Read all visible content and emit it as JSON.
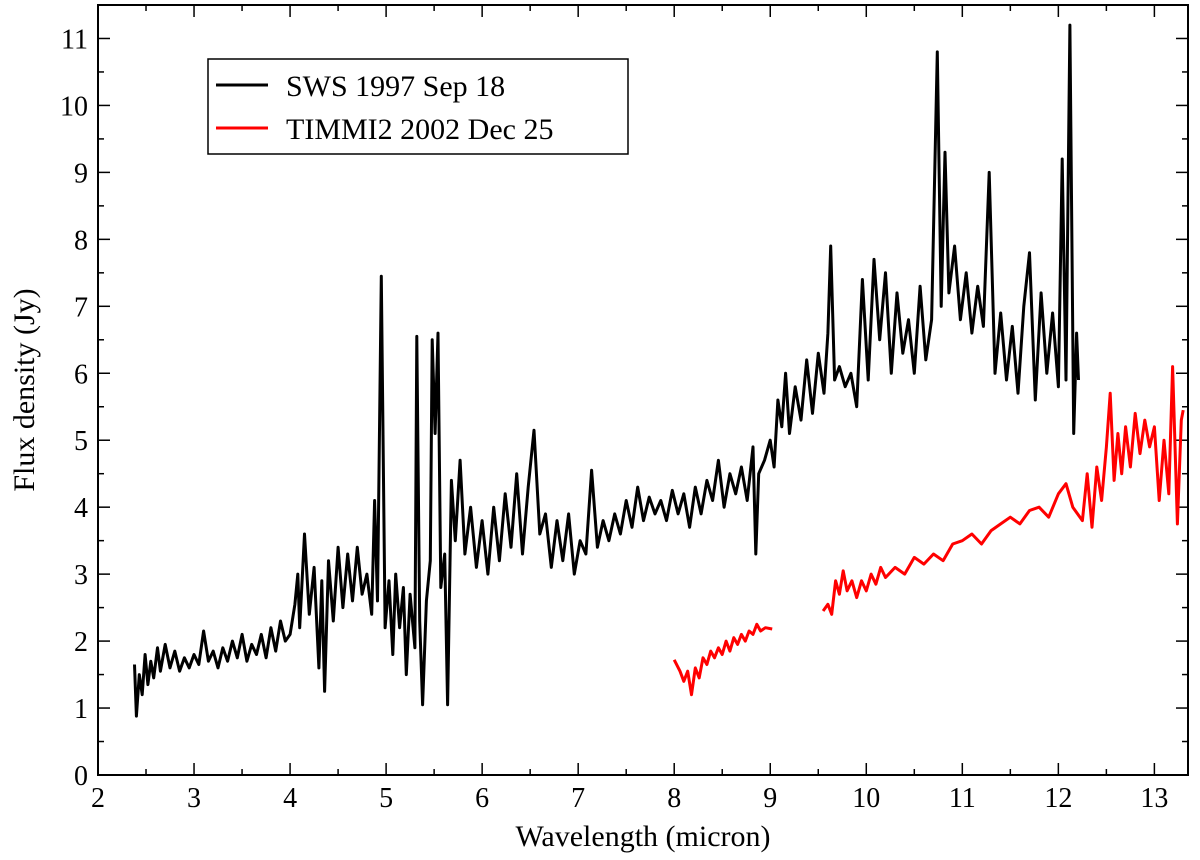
{
  "chart_data": {
    "type": "line",
    "title": "",
    "xlabel": "Wavelength (micron)",
    "ylabel": "Flux density (Jy)",
    "xlim": [
      2,
      13.35
    ],
    "ylim": [
      0,
      11.5
    ],
    "xticks": [
      2,
      3,
      4,
      5,
      6,
      7,
      8,
      9,
      10,
      11,
      12,
      13
    ],
    "yticks": [
      0,
      1,
      2,
      3,
      4,
      5,
      6,
      7,
      8,
      9,
      10,
      11
    ],
    "grid": false,
    "legend_position": "top-left",
    "series": [
      {
        "name": "SWS 1997 Sep 18",
        "color": "#000000",
        "points": [
          [
            2.38,
            1.65
          ],
          [
            2.4,
            0.88
          ],
          [
            2.43,
            1.5
          ],
          [
            2.46,
            1.2
          ],
          [
            2.49,
            1.8
          ],
          [
            2.52,
            1.35
          ],
          [
            2.55,
            1.7
          ],
          [
            2.58,
            1.45
          ],
          [
            2.62,
            1.9
          ],
          [
            2.65,
            1.55
          ],
          [
            2.7,
            1.95
          ],
          [
            2.75,
            1.6
          ],
          [
            2.8,
            1.85
          ],
          [
            2.85,
            1.55
          ],
          [
            2.9,
            1.75
          ],
          [
            2.95,
            1.6
          ],
          [
            3.0,
            1.8
          ],
          [
            3.05,
            1.65
          ],
          [
            3.1,
            2.15
          ],
          [
            3.15,
            1.7
          ],
          [
            3.2,
            1.85
          ],
          [
            3.25,
            1.6
          ],
          [
            3.3,
            1.9
          ],
          [
            3.35,
            1.7
          ],
          [
            3.4,
            2.0
          ],
          [
            3.45,
            1.75
          ],
          [
            3.5,
            2.1
          ],
          [
            3.55,
            1.7
          ],
          [
            3.6,
            1.95
          ],
          [
            3.65,
            1.8
          ],
          [
            3.7,
            2.1
          ],
          [
            3.75,
            1.75
          ],
          [
            3.8,
            2.2
          ],
          [
            3.85,
            1.85
          ],
          [
            3.9,
            2.3
          ],
          [
            3.95,
            2.0
          ],
          [
            4.0,
            2.1
          ],
          [
            4.05,
            2.55
          ],
          [
            4.08,
            3.0
          ],
          [
            4.1,
            2.2
          ],
          [
            4.15,
            3.6
          ],
          [
            4.2,
            2.4
          ],
          [
            4.25,
            3.1
          ],
          [
            4.3,
            1.6
          ],
          [
            4.33,
            2.9
          ],
          [
            4.36,
            1.25
          ],
          [
            4.4,
            3.2
          ],
          [
            4.45,
            2.3
          ],
          [
            4.5,
            3.4
          ],
          [
            4.55,
            2.5
          ],
          [
            4.6,
            3.3
          ],
          [
            4.65,
            2.6
          ],
          [
            4.7,
            3.4
          ],
          [
            4.75,
            2.7
          ],
          [
            4.8,
            3.0
          ],
          [
            4.85,
            2.4
          ],
          [
            4.88,
            4.1
          ],
          [
            4.91,
            2.6
          ],
          [
            4.95,
            7.45
          ],
          [
            4.99,
            2.2
          ],
          [
            5.03,
            2.9
          ],
          [
            5.07,
            1.8
          ],
          [
            5.1,
            3.0
          ],
          [
            5.14,
            2.2
          ],
          [
            5.18,
            2.8
          ],
          [
            5.21,
            1.5
          ],
          [
            5.25,
            2.7
          ],
          [
            5.3,
            1.9
          ],
          [
            5.32,
            6.55
          ],
          [
            5.35,
            2.3
          ],
          [
            5.38,
            1.05
          ],
          [
            5.42,
            2.6
          ],
          [
            5.46,
            3.2
          ],
          [
            5.48,
            6.5
          ],
          [
            5.51,
            5.1
          ],
          [
            5.54,
            6.6
          ],
          [
            5.57,
            2.8
          ],
          [
            5.61,
            3.3
          ],
          [
            5.64,
            1.05
          ],
          [
            5.68,
            4.4
          ],
          [
            5.72,
            3.5
          ],
          [
            5.77,
            4.7
          ],
          [
            5.82,
            3.3
          ],
          [
            5.88,
            4.0
          ],
          [
            5.94,
            3.1
          ],
          [
            6.0,
            3.8
          ],
          [
            6.06,
            3.0
          ],
          [
            6.12,
            4.0
          ],
          [
            6.18,
            3.2
          ],
          [
            6.24,
            4.2
          ],
          [
            6.3,
            3.4
          ],
          [
            6.36,
            4.5
          ],
          [
            6.42,
            3.3
          ],
          [
            6.48,
            4.3
          ],
          [
            6.54,
            5.15
          ],
          [
            6.6,
            3.6
          ],
          [
            6.66,
            3.9
          ],
          [
            6.72,
            3.1
          ],
          [
            6.78,
            3.8
          ],
          [
            6.84,
            3.2
          ],
          [
            6.9,
            3.9
          ],
          [
            6.96,
            3.0
          ],
          [
            7.02,
            3.5
          ],
          [
            7.08,
            3.3
          ],
          [
            7.14,
            4.55
          ],
          [
            7.2,
            3.4
          ],
          [
            7.26,
            3.8
          ],
          [
            7.32,
            3.5
          ],
          [
            7.38,
            3.9
          ],
          [
            7.44,
            3.6
          ],
          [
            7.5,
            4.1
          ],
          [
            7.56,
            3.7
          ],
          [
            7.62,
            4.3
          ],
          [
            7.68,
            3.8
          ],
          [
            7.74,
            4.15
          ],
          [
            7.8,
            3.9
          ],
          [
            7.86,
            4.1
          ],
          [
            7.92,
            3.8
          ],
          [
            7.98,
            4.25
          ],
          [
            8.04,
            3.9
          ],
          [
            8.1,
            4.2
          ],
          [
            8.16,
            3.7
          ],
          [
            8.22,
            4.3
          ],
          [
            8.28,
            3.9
          ],
          [
            8.34,
            4.4
          ],
          [
            8.4,
            4.1
          ],
          [
            8.46,
            4.7
          ],
          [
            8.52,
            4.0
          ],
          [
            8.58,
            4.5
          ],
          [
            8.64,
            4.2
          ],
          [
            8.7,
            4.6
          ],
          [
            8.76,
            4.1
          ],
          [
            8.82,
            4.9
          ],
          [
            8.85,
            3.3
          ],
          [
            8.88,
            4.5
          ],
          [
            8.94,
            4.7
          ],
          [
            9.0,
            5.0
          ],
          [
            9.04,
            4.6
          ],
          [
            9.08,
            5.6
          ],
          [
            9.12,
            5.2
          ],
          [
            9.16,
            6.0
          ],
          [
            9.2,
            5.1
          ],
          [
            9.26,
            5.8
          ],
          [
            9.32,
            5.3
          ],
          [
            9.38,
            6.2
          ],
          [
            9.44,
            5.4
          ],
          [
            9.5,
            6.3
          ],
          [
            9.56,
            5.7
          ],
          [
            9.6,
            6.6
          ],
          [
            9.63,
            7.9
          ],
          [
            9.67,
            5.9
          ],
          [
            9.72,
            6.1
          ],
          [
            9.78,
            5.8
          ],
          [
            9.84,
            6.0
          ],
          [
            9.9,
            5.5
          ],
          [
            9.96,
            7.4
          ],
          [
            10.02,
            5.9
          ],
          [
            10.08,
            7.7
          ],
          [
            10.14,
            6.5
          ],
          [
            10.2,
            7.5
          ],
          [
            10.26,
            6.0
          ],
          [
            10.32,
            7.2
          ],
          [
            10.38,
            6.3
          ],
          [
            10.44,
            6.8
          ],
          [
            10.5,
            6.0
          ],
          [
            10.56,
            7.3
          ],
          [
            10.62,
            6.2
          ],
          [
            10.68,
            6.8
          ],
          [
            10.74,
            10.8
          ],
          [
            10.78,
            7.0
          ],
          [
            10.82,
            9.3
          ],
          [
            10.86,
            7.2
          ],
          [
            10.92,
            7.9
          ],
          [
            10.98,
            6.8
          ],
          [
            11.04,
            7.5
          ],
          [
            11.1,
            6.6
          ],
          [
            11.16,
            7.3
          ],
          [
            11.22,
            6.7
          ],
          [
            11.28,
            9.0
          ],
          [
            11.34,
            6.0
          ],
          [
            11.4,
            6.9
          ],
          [
            11.46,
            5.9
          ],
          [
            11.52,
            6.7
          ],
          [
            11.58,
            5.7
          ],
          [
            11.64,
            7.0
          ],
          [
            11.7,
            7.8
          ],
          [
            11.76,
            5.6
          ],
          [
            11.82,
            7.2
          ],
          [
            11.88,
            6.0
          ],
          [
            11.94,
            6.9
          ],
          [
            12.0,
            5.8
          ],
          [
            12.04,
            9.2
          ],
          [
            12.08,
            5.9
          ],
          [
            12.12,
            11.2
          ],
          [
            12.16,
            5.1
          ],
          [
            12.19,
            6.6
          ],
          [
            12.21,
            5.9
          ]
        ]
      },
      {
        "name": "TIMMI2 2002 Dec 25",
        "color": "#ff0000",
        "segments": [
          [
            [
              8.0,
              1.72
            ],
            [
              8.06,
              1.55
            ],
            [
              8.1,
              1.4
            ],
            [
              8.14,
              1.55
            ],
            [
              8.18,
              1.2
            ],
            [
              8.22,
              1.6
            ],
            [
              8.26,
              1.45
            ],
            [
              8.3,
              1.75
            ],
            [
              8.34,
              1.65
            ],
            [
              8.38,
              1.85
            ],
            [
              8.42,
              1.75
            ],
            [
              8.46,
              1.9
            ],
            [
              8.5,
              1.8
            ],
            [
              8.54,
              2.0
            ],
            [
              8.58,
              1.85
            ],
            [
              8.62,
              2.05
            ],
            [
              8.66,
              1.95
            ],
            [
              8.7,
              2.1
            ],
            [
              8.74,
              2.0
            ],
            [
              8.78,
              2.15
            ],
            [
              8.82,
              2.1
            ],
            [
              8.86,
              2.25
            ],
            [
              8.9,
              2.15
            ],
            [
              8.95,
              2.2
            ],
            [
              9.02,
              2.18
            ]
          ],
          [
            [
              9.55,
              2.45
            ],
            [
              9.6,
              2.55
            ],
            [
              9.64,
              2.4
            ],
            [
              9.68,
              2.9
            ],
            [
              9.72,
              2.7
            ],
            [
              9.76,
              3.05
            ],
            [
              9.8,
              2.75
            ],
            [
              9.85,
              2.9
            ],
            [
              9.9,
              2.65
            ],
            [
              9.95,
              2.9
            ],
            [
              10.0,
              2.75
            ],
            [
              10.05,
              3.0
            ],
            [
              10.1,
              2.85
            ],
            [
              10.15,
              3.1
            ],
            [
              10.2,
              2.95
            ],
            [
              10.3,
              3.1
            ],
            [
              10.4,
              3.0
            ],
            [
              10.5,
              3.25
            ],
            [
              10.6,
              3.15
            ],
            [
              10.7,
              3.3
            ],
            [
              10.8,
              3.2
            ],
            [
              10.9,
              3.45
            ],
            [
              11.0,
              3.5
            ],
            [
              11.1,
              3.6
            ],
            [
              11.2,
              3.45
            ],
            [
              11.3,
              3.65
            ],
            [
              11.4,
              3.75
            ],
            [
              11.5,
              3.85
            ],
            [
              11.6,
              3.75
            ],
            [
              11.7,
              3.95
            ],
            [
              11.8,
              4.0
            ],
            [
              11.9,
              3.85
            ],
            [
              12.0,
              4.2
            ],
            [
              12.08,
              4.35
            ],
            [
              12.15,
              4.0
            ],
            [
              12.25,
              3.8
            ],
            [
              12.3,
              4.5
            ],
            [
              12.35,
              3.7
            ],
            [
              12.4,
              4.6
            ],
            [
              12.45,
              4.1
            ],
            [
              12.5,
              4.9
            ],
            [
              12.54,
              5.7
            ],
            [
              12.58,
              4.4
            ],
            [
              12.62,
              5.1
            ],
            [
              12.66,
              4.5
            ],
            [
              12.7,
              5.2
            ],
            [
              12.75,
              4.6
            ],
            [
              12.8,
              5.4
            ],
            [
              12.85,
              4.8
            ],
            [
              12.9,
              5.3
            ],
            [
              12.95,
              4.9
            ],
            [
              13.0,
              5.2
            ],
            [
              13.05,
              4.1
            ],
            [
              13.1,
              5.0
            ],
            [
              13.15,
              4.2
            ],
            [
              13.19,
              6.1
            ],
            [
              13.24,
              3.75
            ],
            [
              13.28,
              5.3
            ],
            [
              13.3,
              5.45
            ]
          ]
        ]
      }
    ]
  }
}
